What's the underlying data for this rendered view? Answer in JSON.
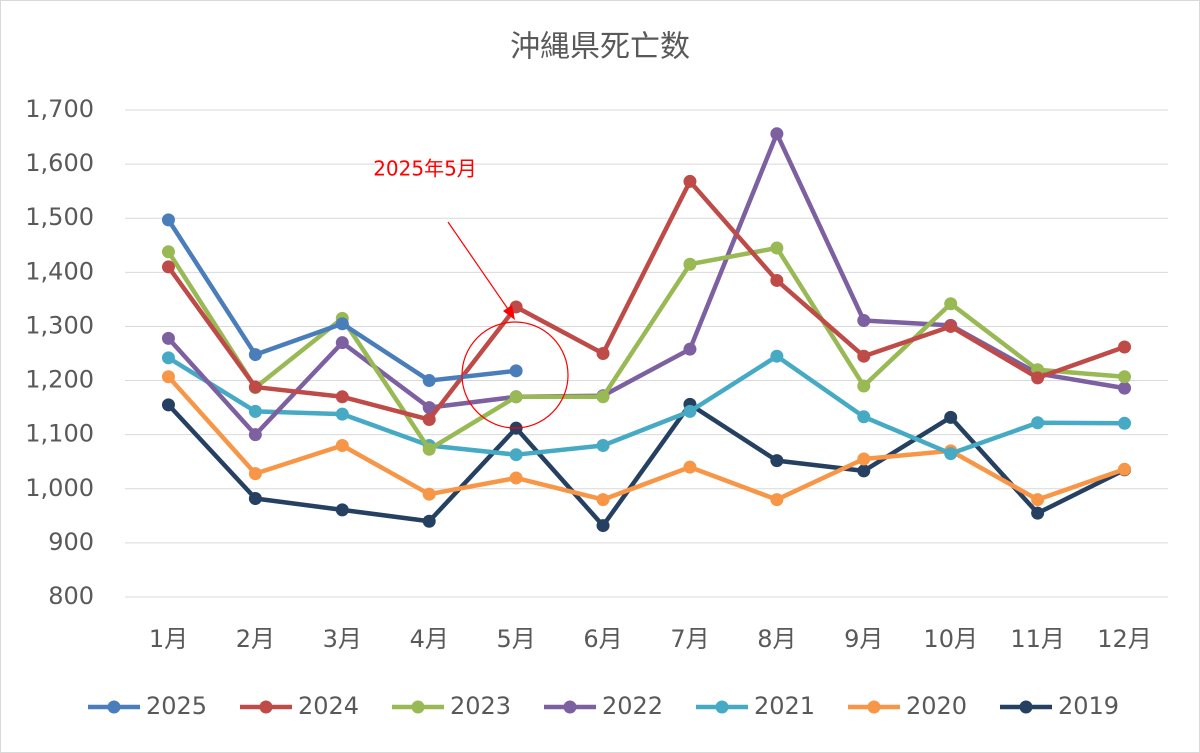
{
  "chart_data": {
    "type": "line",
    "title": "沖縄県死亡数",
    "annotation": "2025年5月",
    "categories": [
      "1月",
      "2月",
      "3月",
      "4月",
      "5月",
      "6月",
      "7月",
      "8月",
      "9月",
      "10月",
      "11月",
      "12月"
    ],
    "ylim": [
      800,
      1700
    ],
    "yticks": [
      800,
      900,
      {
        "value": 1000,
        "label": "1,000"
      },
      {
        "value": 1100,
        "label": "1,100"
      },
      {
        "value": 1200,
        "label": "1,200"
      },
      {
        "value": 1300,
        "label": "1,300"
      },
      {
        "value": 1400,
        "label": "1,400"
      },
      {
        "value": 1500,
        "label": "1,500"
      },
      {
        "value": 1600,
        "label": "1,600"
      },
      {
        "value": 1700,
        "label": "1,700"
      }
    ],
    "grid": true,
    "legend": "bottom",
    "series": [
      {
        "name": "2025",
        "color": "#4a7ebb",
        "values": [
          1497,
          1248,
          1305,
          1200,
          1218,
          null,
          null,
          null,
          null,
          null,
          null,
          null
        ]
      },
      {
        "name": "2024",
        "color": "#be4b48",
        "values": [
          1410,
          1188,
          1170,
          1128,
          1336,
          1250,
          1568,
          1385,
          1245,
          1300,
          1205,
          1262
        ]
      },
      {
        "name": "2023",
        "color": "#98b954",
        "values": [
          1438,
          1187,
          1315,
          1073,
          1170,
          1170,
          1415,
          1445,
          1190,
          1342,
          1220,
          1207
        ]
      },
      {
        "name": "2022",
        "color": "#7d60a0",
        "values": [
          1278,
          1100,
          1270,
          1150,
          1170,
          1172,
          1258,
          1656,
          1311,
          1302,
          1213,
          1186
        ]
      },
      {
        "name": "2021",
        "color": "#46aac5",
        "values": [
          1242,
          1143,
          1138,
          1080,
          1063,
          1080,
          1143,
          1245,
          1133,
          1065,
          1122,
          1121
        ]
      },
      {
        "name": "2020",
        "color": "#f79646",
        "values": [
          1207,
          1028,
          1080,
          990,
          1020,
          980,
          1040,
          980,
          1055,
          1070,
          980,
          1036
        ]
      },
      {
        "name": "2019",
        "color": "#254061",
        "values": [
          1155,
          982,
          961,
          940,
          1112,
          932,
          1156,
          1052,
          1033,
          1132,
          955,
          1035
        ]
      }
    ]
  }
}
